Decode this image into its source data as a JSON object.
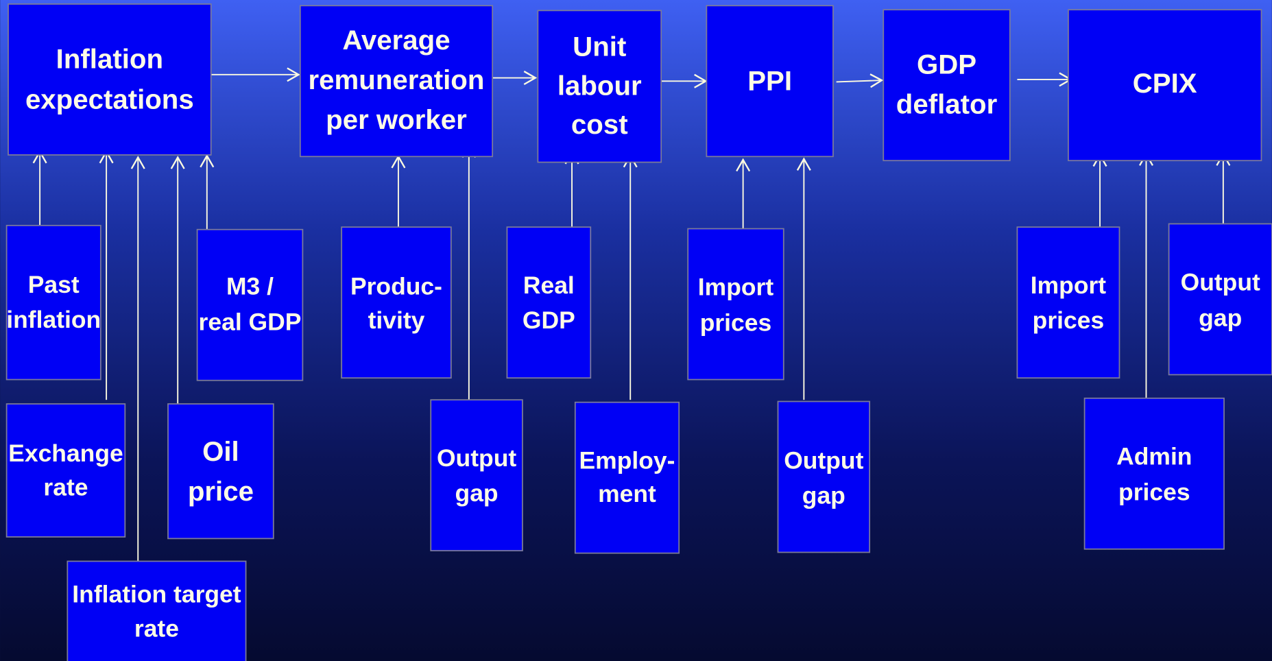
{
  "nodes": [
    {
      "lines": [
        "Inflation",
        "expectations"
      ]
    },
    {
      "lines": [
        "Average",
        "remuneration",
        "per worker"
      ]
    },
    {
      "lines": [
        "Unit",
        "labour",
        "cost"
      ]
    },
    {
      "lines": [
        "PPI"
      ]
    },
    {
      "lines": [
        "GDP",
        "deflator"
      ]
    },
    {
      "lines": [
        "CPIX"
      ]
    },
    {
      "lines": [
        "Past",
        "inflation"
      ]
    },
    {
      "lines": [
        "M3 /",
        "real GDP"
      ]
    },
    {
      "lines": [
        "Produc-",
        "tivity"
      ]
    },
    {
      "lines": [
        "Real",
        "GDP"
      ]
    },
    {
      "lines": [
        "Import",
        "prices"
      ]
    },
    {
      "lines": [
        "Import",
        "prices"
      ]
    },
    {
      "lines": [
        "Output",
        "gap"
      ]
    },
    {
      "lines": [
        "Exchange",
        "rate"
      ]
    },
    {
      "lines": [
        "Oil",
        "price"
      ]
    },
    {
      "lines": [
        "Output",
        "gap"
      ]
    },
    {
      "lines": [
        "Employ-",
        "ment"
      ]
    },
    {
      "lines": [
        "Output",
        "gap"
      ]
    },
    {
      "lines": [
        "Admin",
        "prices"
      ]
    },
    {
      "lines": [
        "Inflation target",
        "rate"
      ]
    }
  ]
}
